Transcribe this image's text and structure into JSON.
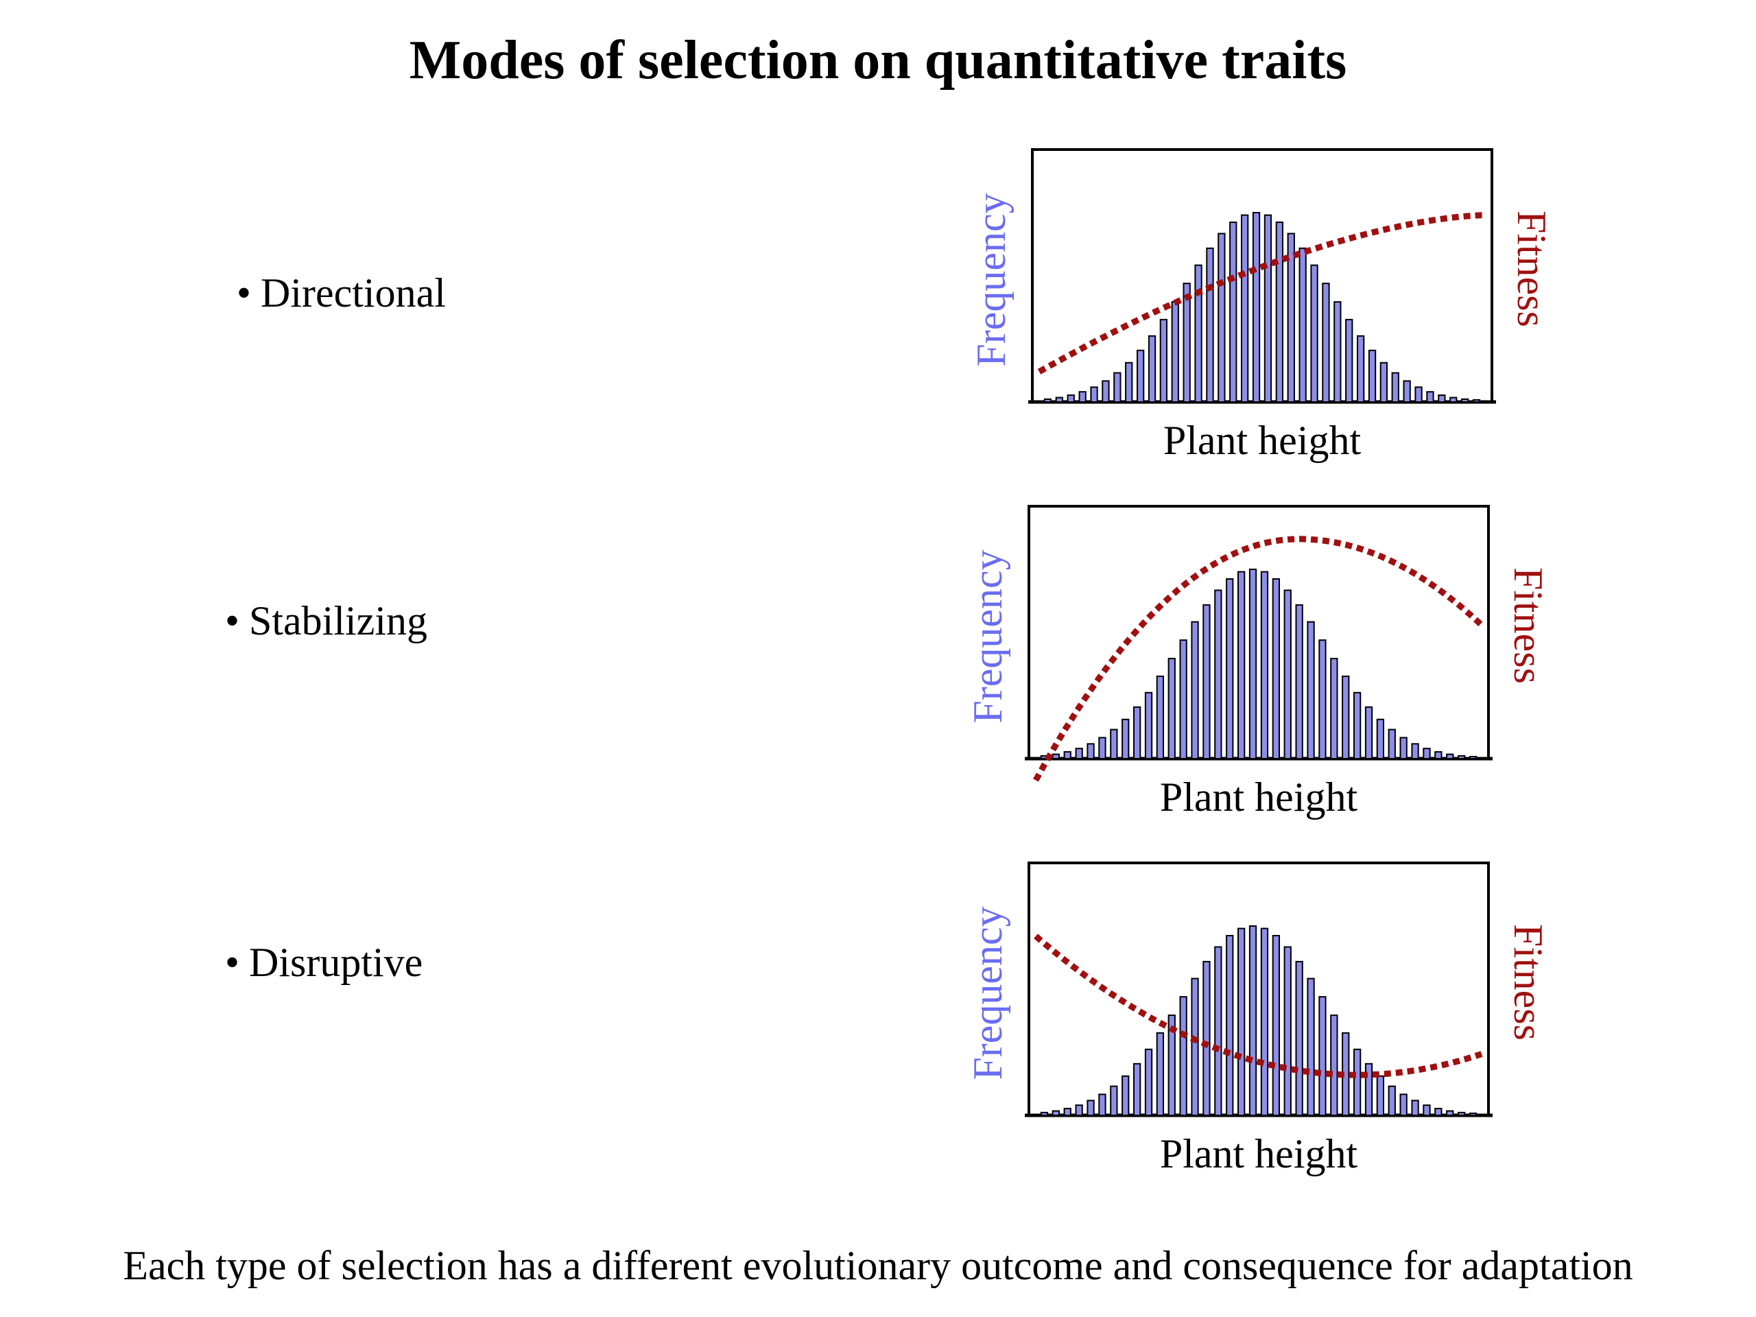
{
  "title": "Modes of selection on quantitative traits",
  "modes": [
    {
      "label": "Directional",
      "fitness_shape": "increasing"
    },
    {
      "label": "Stabilizing",
      "fitness_shape": "peak"
    },
    {
      "label": "Disruptive",
      "fitness_shape": "valley"
    }
  ],
  "bullet_symbol": "•",
  "footer": "Each type of selection has a different evolutionary outcome and consequence for adaptation",
  "chart_data": [
    {
      "type": "bar",
      "xlabel": "Plant height",
      "ylabel_left": "Frequency",
      "ylabel_right": "Fitness",
      "bar_color": "#8c8ee8",
      "fitness_color": "#a01010",
      "frequency_distribution": "normal",
      "fitness_curve": "increasing"
    },
    {
      "type": "bar",
      "xlabel": "Plant height",
      "ylabel_left": "Frequency",
      "ylabel_right": "Fitness",
      "bar_color": "#8c8ee8",
      "fitness_color": "#a01010",
      "frequency_distribution": "normal",
      "fitness_curve": "peak"
    },
    {
      "type": "bar",
      "xlabel": "Plant height",
      "ylabel_left": "Frequency",
      "ylabel_right": "Fitness",
      "bar_color": "#8c8ee8",
      "fitness_color": "#a01010",
      "frequency_distribution": "normal",
      "fitness_curve": "valley"
    }
  ]
}
